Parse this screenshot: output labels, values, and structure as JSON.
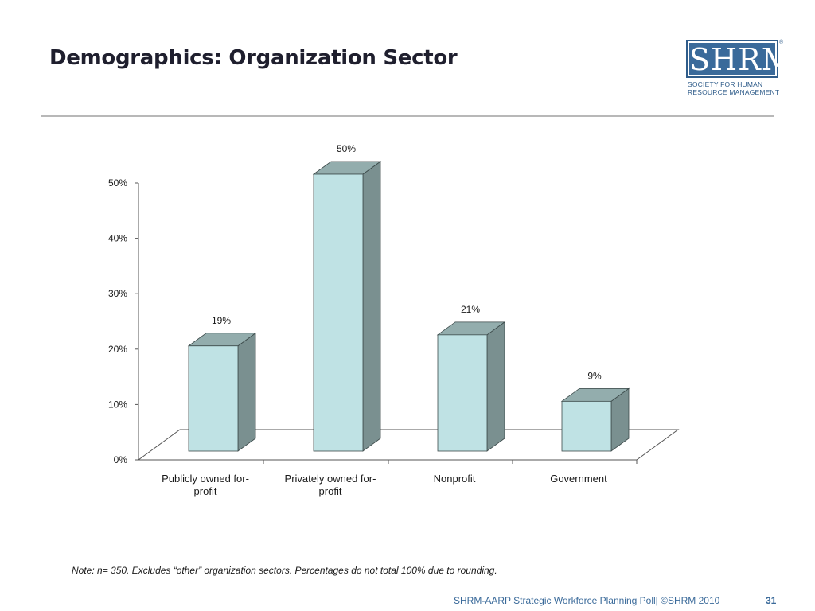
{
  "slide": {
    "title": "Demographics: Organization Sector",
    "note": "Note: n= 350.  Excludes “other” organization sectors. Percentages do not total 100% due to rounding.",
    "footer": "SHRM-AARP Strategic Workforce Planning Poll| ©SHRM 2010",
    "page_number": "31"
  },
  "logo": {
    "wordmark": "SHRM",
    "registered": "®",
    "line1": "SOCIETY FOR HUMAN",
    "line2": "RESOURCE MANAGEMENT"
  },
  "colors": {
    "bar_front": "#bfe2e4",
    "bar_top": "#93adad",
    "bar_side": "#7a9090",
    "bar_edge": "#3c4a4a",
    "axis": "#555555",
    "logo_blue": "#3a6a9a"
  },
  "chart_data": {
    "type": "bar",
    "title": "",
    "xlabel": "",
    "ylabel": "",
    "ylim": [
      0,
      50
    ],
    "yticks": [
      0,
      10,
      20,
      30,
      40,
      50
    ],
    "ytick_labels": [
      "0%",
      "10%",
      "20%",
      "30%",
      "40%",
      "50%"
    ],
    "categories": [
      [
        "Publicly owned for-",
        "profit"
      ],
      [
        "Privately owned for-",
        "profit"
      ],
      [
        "Nonprofit"
      ],
      [
        "Government"
      ]
    ],
    "values": [
      19,
      50,
      21,
      9
    ],
    "data_labels": [
      "19%",
      "50%",
      "21%",
      "9%"
    ],
    "style": "3d-column"
  }
}
